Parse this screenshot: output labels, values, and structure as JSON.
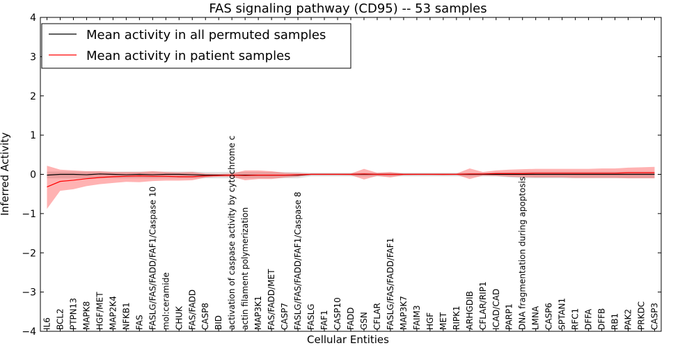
{
  "chart_data": {
    "type": "line",
    "title": "FAS signaling pathway (CD95) -- 53 samples",
    "xlabel": "Cellular Entities",
    "ylabel": "Inferred Activity",
    "ylim": [
      -4,
      4
    ],
    "yticks": [
      -4,
      -3,
      -2,
      -1,
      0,
      1,
      2,
      3,
      4
    ],
    "yticklabels": [
      "−4",
      "−3",
      "−2",
      "−1",
      "0",
      "1",
      "2",
      "3",
      "4"
    ],
    "grid": false,
    "legend_position": "top-left",
    "categories": [
      "IL6",
      "BCL2",
      "PTPN13",
      "MAPK8",
      "HGF/MET",
      "MAP2K4",
      "NFKB1",
      "FAS",
      "FASLG/FAS/FADD/FAF1/Caspase 10",
      "mol:ceramide",
      "CHUK",
      "FAS/FADD",
      "CASP8",
      "BID",
      "activation of caspase activity by cytochrome c",
      "actin filament polymerization",
      "MAP3K1",
      "FAS/FADD/MET",
      "CASP7",
      "FASLG/FAS/FADD/FAF1/Caspase 8",
      "FASLG",
      "FAF1",
      "CASP10",
      "FADD",
      "GSN",
      "CFLAR",
      "FASLG/FAS/FADD/FAF1",
      "MAP3K7",
      "FAIM3",
      "HGF",
      "MET",
      "RIPK1",
      "ARHGDIB",
      "CFLAR/RIP1",
      "ICAD/CAD",
      "PARP1",
      "DNA fragmentation during apoptosis",
      "LMNA",
      "CASP6",
      "SPTAN1",
      "RFC1",
      "DFFA",
      "DFFB",
      "RB1",
      "PAK2",
      "PRKDC",
      "CASP3"
    ],
    "series": [
      {
        "name": "Mean activity in all permuted samples",
        "color": "#000000",
        "values": [
          -0.02,
          0.0,
          0.0,
          -0.01,
          0.01,
          0.0,
          -0.01,
          0.0,
          -0.01,
          0.0,
          0.0,
          -0.01,
          -0.02,
          -0.02,
          -0.02,
          -0.02,
          -0.02,
          -0.02,
          -0.02,
          -0.02,
          0.0,
          0.0,
          0.0,
          0.0,
          0.0,
          0.0,
          0.0,
          0.0,
          0.0,
          0.0,
          0.0,
          0.0,
          0.0,
          0.0,
          0.0,
          0.0,
          0.0,
          0.0,
          0.0,
          0.0,
          0.0,
          0.0,
          0.0,
          0.0,
          0.0,
          0.0,
          0.0
        ],
        "band_low": [
          -0.1,
          -0.1,
          -0.1,
          -0.1,
          -0.1,
          -0.1,
          -0.1,
          -0.1,
          -0.1,
          -0.1,
          -0.1,
          -0.1,
          -0.1,
          -0.1,
          -0.1,
          -0.1,
          -0.1,
          -0.1,
          -0.1,
          -0.1,
          -0.05,
          -0.05,
          -0.05,
          -0.05,
          -0.05,
          -0.05,
          -0.05,
          -0.05,
          -0.05,
          -0.05,
          -0.05,
          -0.05,
          -0.05,
          -0.05,
          -0.05,
          -0.08,
          -0.1,
          -0.1,
          -0.1,
          -0.1,
          -0.1,
          -0.1,
          -0.1,
          -0.1,
          -0.1,
          -0.1,
          -0.1
        ],
        "band_high": [
          0.07,
          0.07,
          0.07,
          0.07,
          0.07,
          0.07,
          0.07,
          0.07,
          0.07,
          0.07,
          0.07,
          0.07,
          0.06,
          0.06,
          0.06,
          0.06,
          0.06,
          0.06,
          0.06,
          0.06,
          0.04,
          0.04,
          0.04,
          0.04,
          0.04,
          0.04,
          0.04,
          0.04,
          0.04,
          0.04,
          0.04,
          0.04,
          0.04,
          0.04,
          0.05,
          0.06,
          0.07,
          0.07,
          0.07,
          0.07,
          0.07,
          0.07,
          0.07,
          0.07,
          0.07,
          0.07,
          0.07
        ]
      },
      {
        "name": "Mean activity in patient samples",
        "color": "#ff0000",
        "values": [
          -0.32,
          -0.18,
          -0.15,
          -0.11,
          -0.08,
          -0.06,
          -0.05,
          -0.04,
          -0.05,
          -0.05,
          -0.06,
          -0.06,
          -0.04,
          -0.03,
          -0.02,
          -0.03,
          -0.02,
          -0.02,
          -0.02,
          -0.01,
          0.0,
          0.0,
          0.0,
          0.0,
          0.01,
          0.0,
          0.0,
          0.0,
          0.0,
          0.0,
          0.0,
          0.0,
          0.01,
          0.01,
          0.02,
          0.02,
          0.02,
          0.03,
          0.03,
          0.03,
          0.03,
          0.03,
          0.03,
          0.03,
          0.04,
          0.04,
          0.04
        ],
        "band_low": [
          -0.88,
          -0.42,
          -0.38,
          -0.3,
          -0.25,
          -0.22,
          -0.19,
          -0.2,
          -0.17,
          -0.16,
          -0.16,
          -0.15,
          -0.08,
          -0.06,
          -0.06,
          -0.15,
          -0.12,
          -0.12,
          -0.08,
          -0.06,
          -0.01,
          -0.01,
          -0.01,
          -0.02,
          -0.13,
          -0.04,
          -0.08,
          -0.02,
          -0.01,
          -0.01,
          -0.02,
          -0.01,
          -0.12,
          -0.03,
          -0.04,
          -0.06,
          -0.07,
          -0.08,
          -0.08,
          -0.08,
          -0.09,
          -0.09,
          -0.09,
          -0.09,
          -0.1,
          -0.1,
          -0.1
        ],
        "band_high": [
          0.22,
          0.12,
          0.1,
          0.08,
          0.08,
          0.06,
          0.06,
          0.06,
          0.08,
          0.06,
          0.05,
          0.06,
          0.02,
          0.01,
          0.02,
          0.1,
          0.1,
          0.08,
          0.04,
          0.03,
          0.02,
          0.02,
          0.02,
          0.02,
          0.14,
          0.04,
          0.06,
          0.02,
          0.02,
          0.02,
          0.02,
          0.02,
          0.15,
          0.06,
          0.1,
          0.12,
          0.13,
          0.14,
          0.14,
          0.14,
          0.14,
          0.14,
          0.15,
          0.15,
          0.17,
          0.18,
          0.19
        ]
      }
    ]
  }
}
